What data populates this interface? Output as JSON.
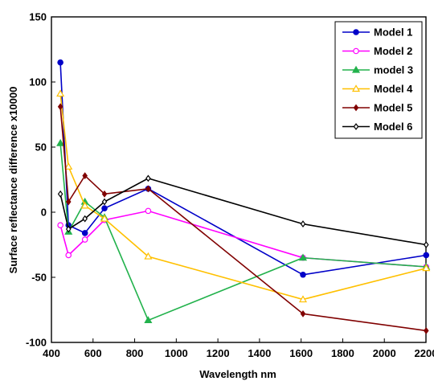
{
  "chart_data": {
    "type": "line",
    "title": "",
    "xlabel": "Wavelength nm",
    "ylabel": "Surface reflectance difference  x10000",
    "xlim": [
      400,
      2200
    ],
    "ylim": [
      -100,
      150
    ],
    "xticks": [
      400,
      600,
      800,
      1000,
      1200,
      1400,
      1600,
      1800,
      2000,
      2200
    ],
    "yticks": [
      -100,
      -50,
      0,
      50,
      100,
      150
    ],
    "grid": false,
    "legend_position": "top-right",
    "x": [
      443,
      482,
      561,
      655,
      865,
      1609,
      2201
    ],
    "series": [
      {
        "name": "Model 1",
        "color": "#0000c8",
        "marker": "circle-filled",
        "values": [
          115,
          -10,
          -16,
          3,
          18,
          -48,
          -33
        ]
      },
      {
        "name": "Model 2",
        "color": "#ff00ff",
        "marker": "circle-open",
        "values": [
          -10,
          -33,
          -21,
          -6,
          1,
          -35,
          -42
        ]
      },
      {
        "name": "model 3",
        "color": "#22b24c",
        "marker": "triangle-filled",
        "values": [
          53,
          -15,
          8,
          -4,
          -83,
          -35,
          -42
        ]
      },
      {
        "name": "Model 4",
        "color": "#ffc000",
        "marker": "triangle-open",
        "values": [
          91,
          35,
          5,
          -5,
          -34,
          -67,
          -43
        ]
      },
      {
        "name": "Model 5",
        "color": "#800000",
        "marker": "diamond-filled",
        "values": [
          81,
          8,
          28,
          14,
          18,
          -78,
          -91
        ]
      },
      {
        "name": "Model 6",
        "color": "#000000",
        "marker": "diamond-open",
        "values": [
          14,
          -13,
          -5,
          8,
          26,
          -9,
          -25
        ]
      }
    ]
  }
}
